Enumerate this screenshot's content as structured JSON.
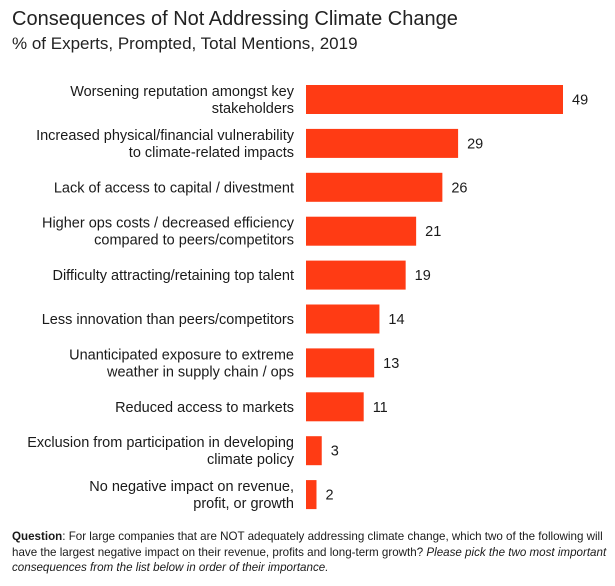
{
  "chart_data": {
    "type": "bar",
    "orientation": "horizontal",
    "title": "Consequences of Not Addressing Climate Change",
    "subtitle": "% of Experts, Prompted, Total Mentions, 2019",
    "categories": [
      [
        "Worsening reputation amongst key",
        "stakeholders"
      ],
      [
        "Increased physical/financial vulnerability",
        "to climate-related impacts"
      ],
      [
        "Lack of access to capital / divestment"
      ],
      [
        "Higher ops costs / decreased efficiency",
        "compared to peers/competitors"
      ],
      [
        "Difficulty attracting/retaining top talent"
      ],
      [
        "Less innovation than peers/competitors"
      ],
      [
        "Unanticipated exposure to extreme",
        "weather in supply chain / ops"
      ],
      [
        "Reduced access to markets"
      ],
      [
        "Exclusion from participation in developing",
        "climate policy"
      ],
      [
        "No negative impact on revenue,",
        "profit, or growth"
      ]
    ],
    "values": [
      49,
      29,
      26,
      21,
      19,
      14,
      13,
      11,
      3,
      2
    ],
    "bar_color": "#ff3b14",
    "xlim": [
      0,
      49
    ],
    "grid": false,
    "legend": "none"
  },
  "footnote": {
    "label": "Question",
    "text": ": For large companies that are NOT adequately addressing climate change, which two of the following will have the largest negative impact on their revenue, profits and long-term growth? ",
    "italic": "Please pick the two most important consequences from the list below in order of their importance."
  }
}
